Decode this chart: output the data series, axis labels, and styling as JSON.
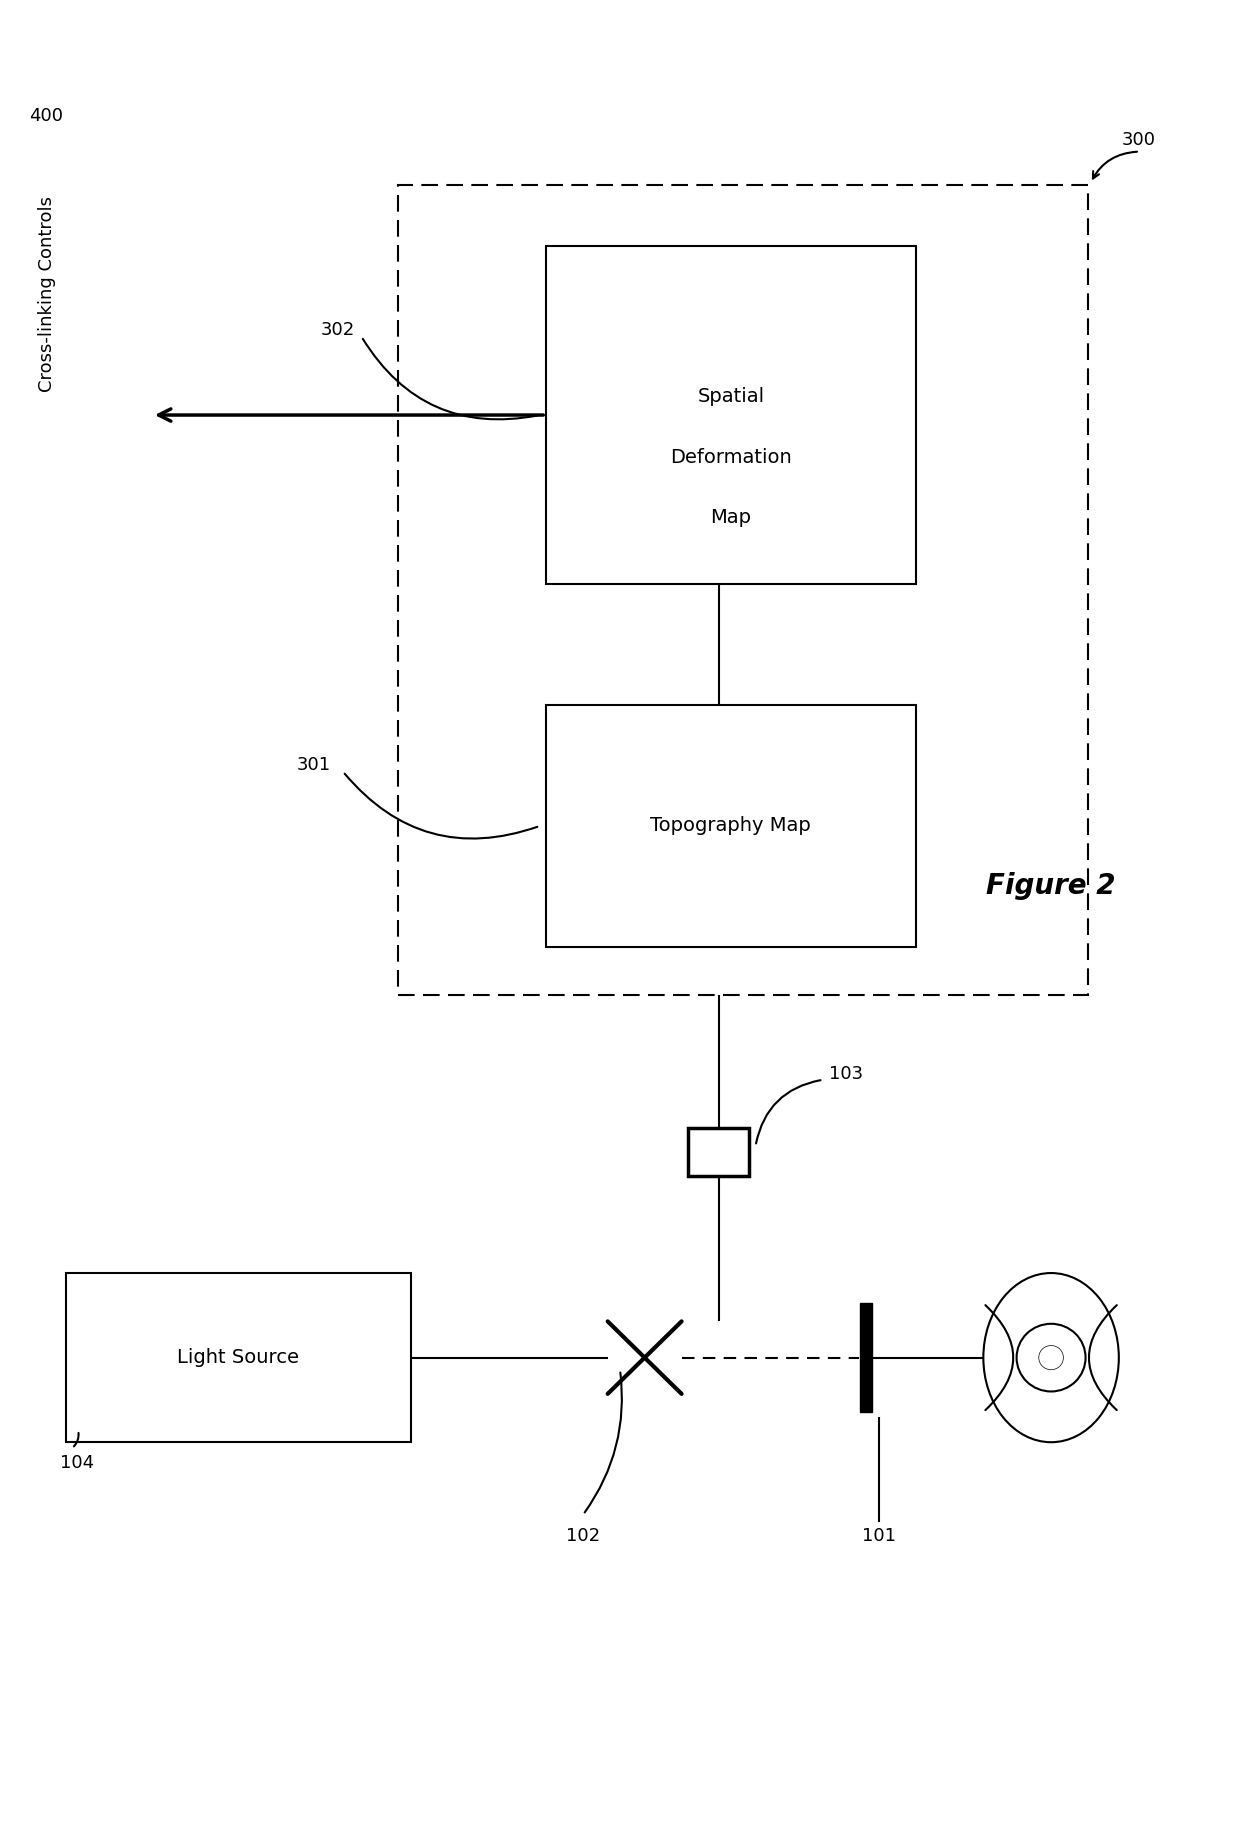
{
  "bg_color": "#ffffff",
  "fig_width": 12.4,
  "fig_height": 18.21,
  "labels": {
    "light_source": "Light Source",
    "topography_map": "Topography Map",
    "spatial_deformation_map_line1": "Spatial",
    "spatial_deformation_map_line2": "Deformation",
    "spatial_deformation_map_line3": "Map",
    "cross_linking": "Cross-linking Controls",
    "figure_label": "Figure 2",
    "ref_101": "101",
    "ref_102": "102",
    "ref_103": "103",
    "ref_104": "104",
    "ref_300": "300",
    "ref_301": "301",
    "ref_302": "302",
    "ref_400": "400"
  },
  "colors": {
    "black": "#000000",
    "white": "#ffffff"
  }
}
